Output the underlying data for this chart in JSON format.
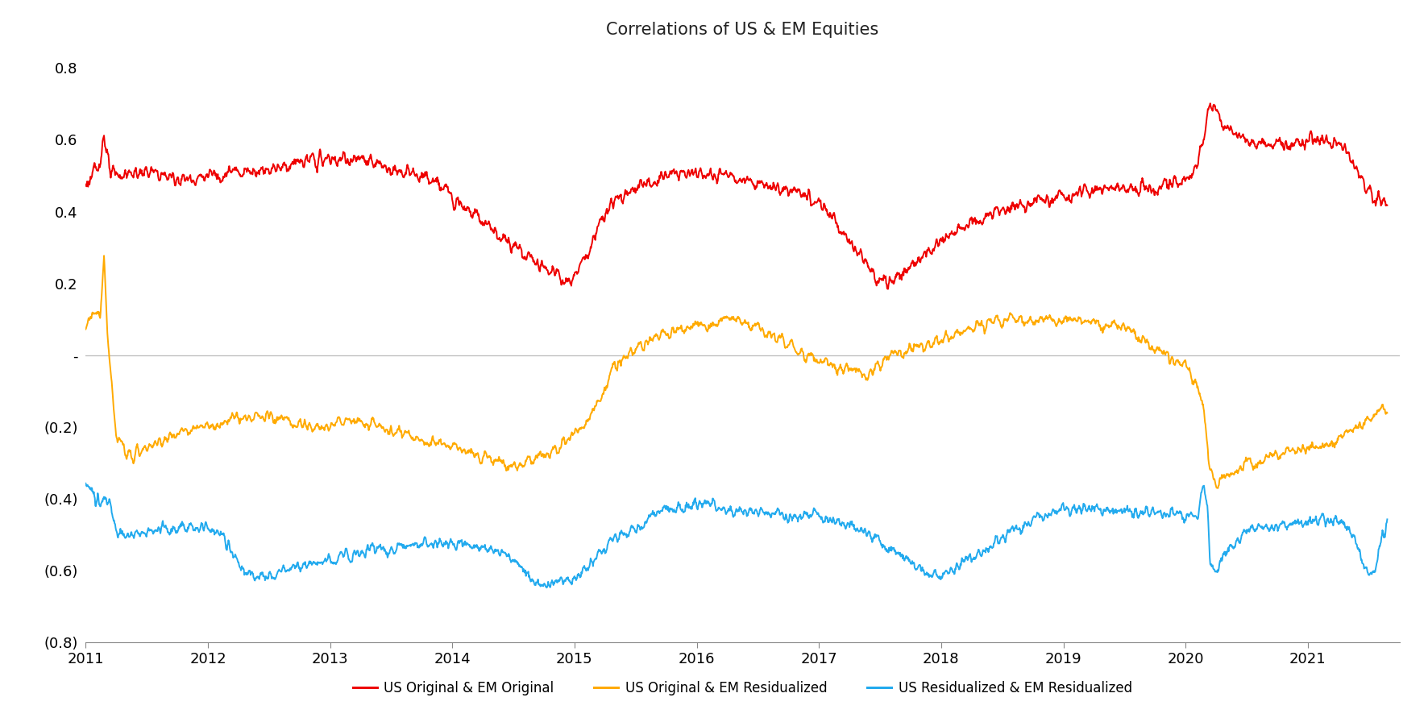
{
  "title": "Correlations of US & EM Equities",
  "title_fontsize": 15,
  "xlim": [
    2011.0,
    2021.75
  ],
  "ylim": [
    -0.8,
    0.85
  ],
  "yticks": [
    0.8,
    0.6,
    0.4,
    0.2,
    0.0,
    -0.2,
    -0.4,
    -0.6,
    -0.8
  ],
  "ytick_labels": [
    "0.8",
    "0.6",
    "0.4",
    "0.2",
    "-",
    "(0.2)",
    "(0.4)",
    "(0.6)",
    "(0.8)"
  ],
  "xticks": [
    2011,
    2012,
    2013,
    2014,
    2015,
    2016,
    2017,
    2018,
    2019,
    2020,
    2021
  ],
  "zero_line_color": "#bbbbbb",
  "line1_color": "#ee0000",
  "line2_color": "#ffaa00",
  "line3_color": "#22aaee",
  "line1_label": "US Original & EM Original",
  "line2_label": "US Original & EM Residualized",
  "line3_label": "US Residualized & EM Residualized",
  "linewidth": 1.4,
  "background_color": "#ffffff",
  "legend_fontsize": 12,
  "tick_fontsize": 13
}
